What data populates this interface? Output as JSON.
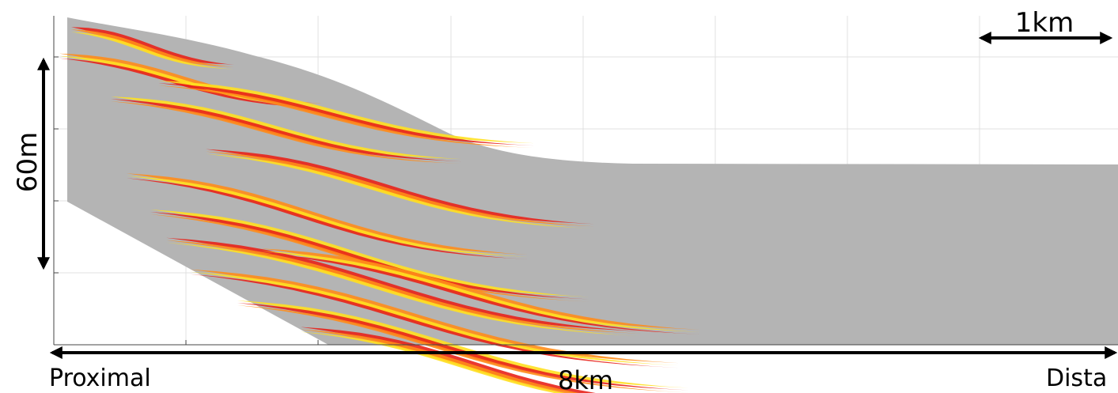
{
  "labels": {
    "scale_horizontal": "1km",
    "scale_vertical": "60m",
    "length": "8km",
    "proximal": "Proximal",
    "distal": "Dista"
  }
}
